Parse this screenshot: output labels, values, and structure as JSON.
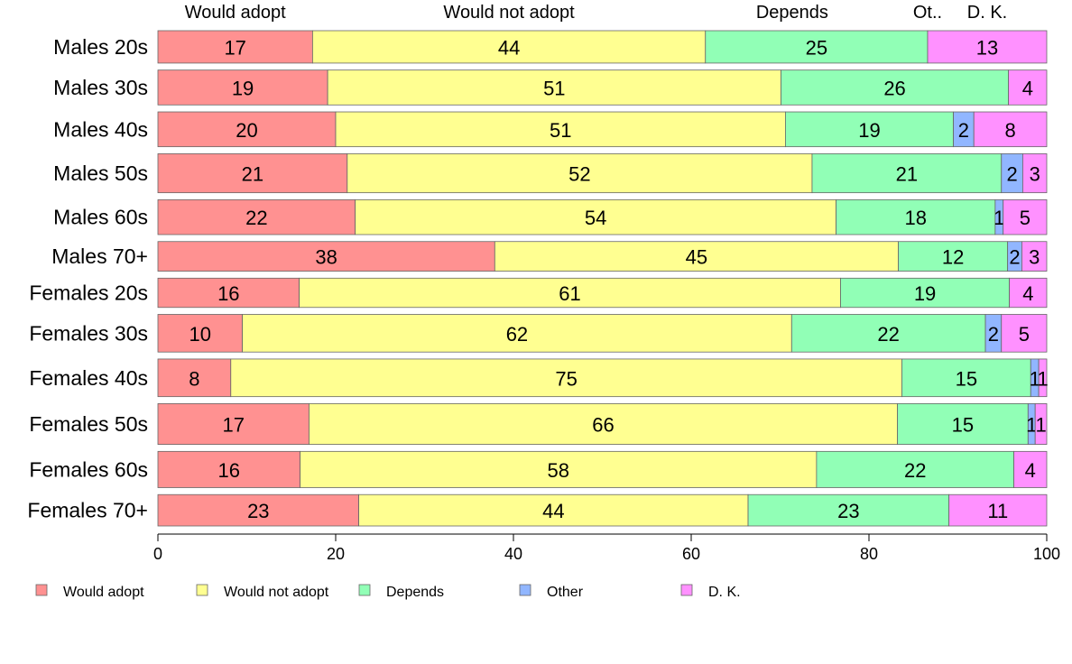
{
  "chart_data": {
    "type": "bar",
    "orientation": "horizontal",
    "stacked": true,
    "normalized": true,
    "top_labels": [
      "Would adopt",
      "Would not adopt",
      "Depends",
      "Ot..",
      "D. K."
    ],
    "categories": [
      "Males 20s",
      "Males 30s",
      "Males 40s",
      "Males 50s",
      "Males 60s",
      "Males 70+",
      "Females 20s",
      "Females 30s",
      "Females 40s",
      "Females 50s",
      "Females 60s",
      "Females 70+"
    ],
    "category_weights": [
      0.93,
      1.0,
      1.0,
      1.12,
      1.0,
      0.85,
      0.84,
      1.08,
      1.08,
      1.17,
      1.04,
      0.9
    ],
    "series": [
      {
        "name": "Would adopt",
        "color": "#ff9191",
        "values": [
          17.4,
          19.1,
          20.0,
          21.3,
          22.2,
          37.9,
          15.9,
          9.5,
          8.2,
          17.0,
          16.0,
          22.6
        ]
      },
      {
        "name": "Would not adopt",
        "color": "#ffff91",
        "values": [
          44.2,
          51.0,
          50.6,
          52.3,
          54.1,
          45.4,
          60.9,
          61.8,
          75.5,
          66.2,
          58.1,
          43.8
        ]
      },
      {
        "name": "Depends",
        "color": "#91ffb6",
        "values": [
          25.0,
          25.6,
          18.9,
          21.3,
          17.9,
          12.3,
          19.0,
          21.8,
          14.5,
          14.7,
          22.2,
          22.6
        ]
      },
      {
        "name": "Other",
        "color": "#91b6ff",
        "values": [
          0,
          0,
          2.3,
          2.4,
          0.9,
          1.6,
          0,
          1.8,
          0.9,
          0.8,
          0,
          0
        ]
      },
      {
        "name": "D. K.",
        "color": "#ff91ff",
        "values": [
          13.4,
          4.3,
          8.2,
          2.7,
          4.9,
          2.8,
          4.2,
          5.1,
          0.9,
          1.3,
          3.7,
          11.0
        ]
      }
    ],
    "segment_labels": [
      [
        "17",
        "44",
        "25",
        "",
        "13"
      ],
      [
        "19",
        "51",
        "26",
        "",
        "4"
      ],
      [
        "20",
        "51",
        "19",
        "2",
        "8"
      ],
      [
        "21",
        "52",
        "21",
        "2",
        "3"
      ],
      [
        "22",
        "54",
        "18",
        "1",
        "5"
      ],
      [
        "38",
        "45",
        "12",
        "2",
        "3"
      ],
      [
        "16",
        "61",
        "19",
        "",
        "4"
      ],
      [
        "10",
        "62",
        "22",
        "2",
        "5"
      ],
      [
        "8",
        "75",
        "15",
        "1",
        "1"
      ],
      [
        "17",
        "66",
        "15",
        "1",
        "1"
      ],
      [
        "16",
        "58",
        "22",
        "",
        "4"
      ],
      [
        "23",
        "44",
        "23",
        "",
        "11"
      ]
    ],
    "xlim": [
      0,
      100
    ],
    "xticks": [
      0,
      20,
      40,
      60,
      80,
      100
    ],
    "legend": {
      "position": "bottom",
      "entries": [
        "Would adopt",
        "Would not adopt",
        "Depends",
        "Other",
        "D. K."
      ]
    },
    "grid": false
  }
}
